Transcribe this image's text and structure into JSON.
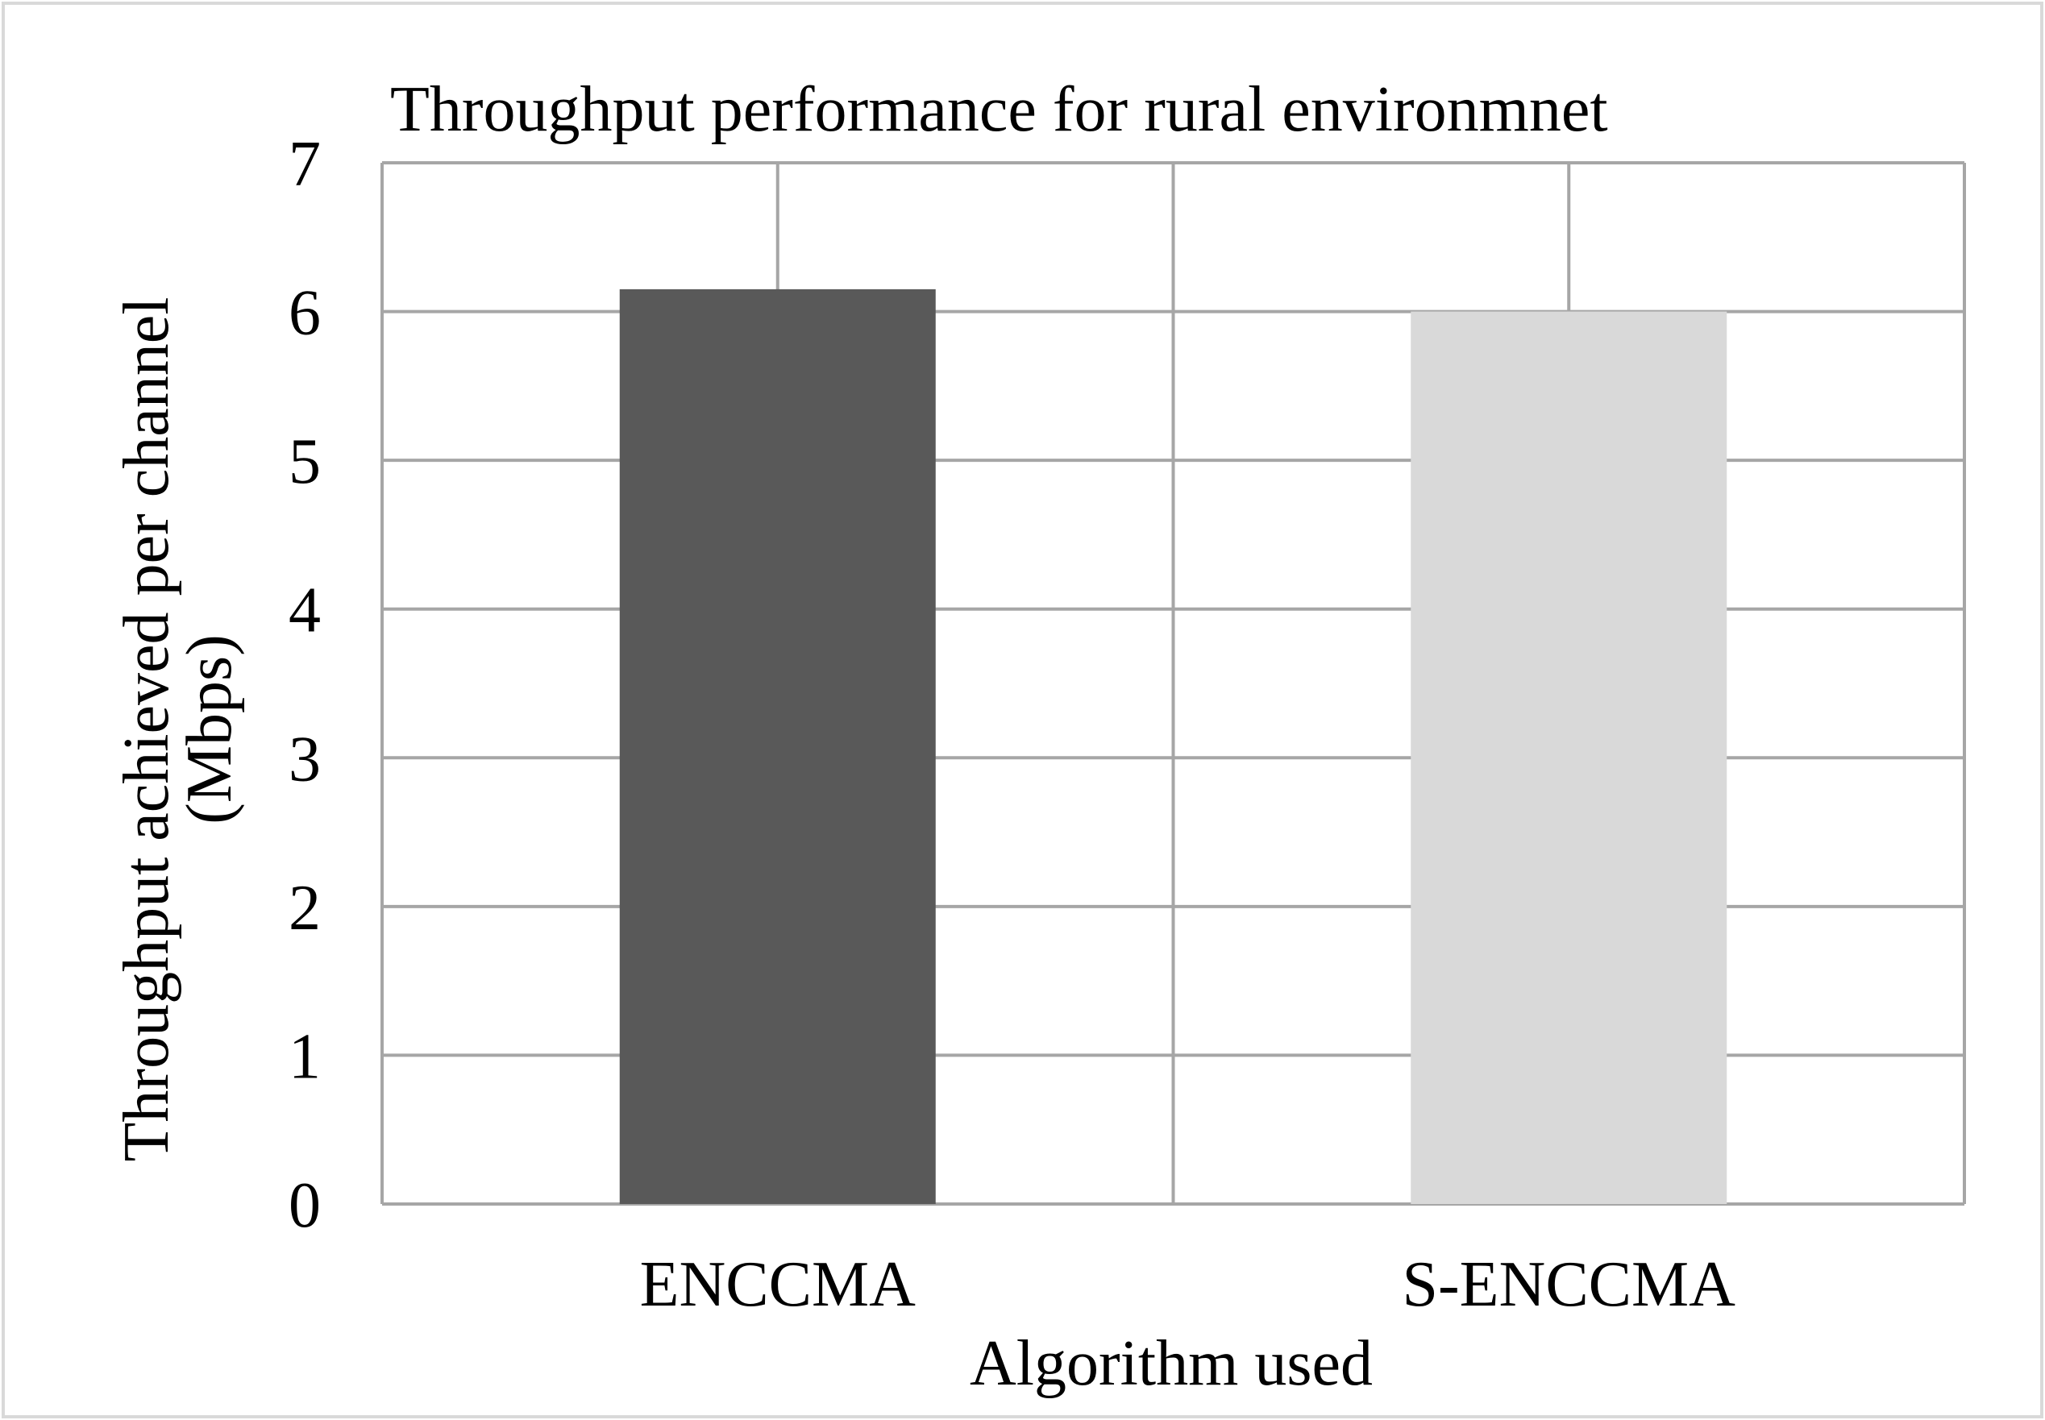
{
  "chart_data": {
    "type": "bar",
    "title": "Throughput performance for rural environmnet",
    "xlabel": "Algorithm used",
    "ylabel_lines": [
      "Throughput achieved per channel",
      "(Mbps)"
    ],
    "categories": [
      "ENCCMA",
      "S-ENCCMA"
    ],
    "values": [
      6.15,
      6.0
    ],
    "bar_colors": [
      "#595959",
      "#d9d9d9"
    ],
    "ylim": [
      0,
      7
    ],
    "yticks": [
      "0",
      "1",
      "2",
      "3",
      "4",
      "5",
      "6",
      "7"
    ],
    "grid": true,
    "legend": "none"
  },
  "colors": {
    "grid": "#a6a6a6",
    "frame": "#d9d9d9",
    "background": "#ffffff"
  }
}
